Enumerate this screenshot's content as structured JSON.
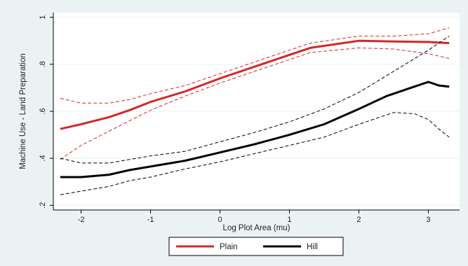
{
  "colors": {
    "background": "#eaf2f3",
    "plot_background": "#ffffff",
    "grid": "#eaf2f3",
    "plain": "#d62728",
    "hill": "#000000"
  },
  "chart_data": {
    "type": "line",
    "title": "",
    "xlabel": "Log Plot Area (mu)",
    "ylabel": "Machine Use - Land Preparation",
    "xlim": [
      -2.4,
      3.45
    ],
    "ylim": [
      0.18,
      1.02
    ],
    "xticks": [
      -2,
      -1,
      0,
      1,
      2,
      3
    ],
    "xtick_labels": [
      "-2",
      "-1",
      "0",
      "1",
      "2",
      "3"
    ],
    "yticks": [
      0.2,
      0.4,
      0.6,
      0.8,
      1.0
    ],
    "ytick_labels": [
      ".2",
      ".4",
      ".6",
      ".8",
      "1"
    ],
    "grid": "horizontal",
    "legend_position": "bottom",
    "series": [
      {
        "name": "Plain",
        "color": "#d62728",
        "style": "solid",
        "x": [
          -2.3,
          -2.0,
          -1.6,
          -1.3,
          -1.0,
          -0.5,
          0.0,
          0.5,
          1.0,
          1.3,
          2.0,
          2.5,
          3.0,
          3.3
        ],
        "y": [
          0.525,
          0.545,
          0.575,
          0.605,
          0.64,
          0.685,
          0.74,
          0.79,
          0.84,
          0.87,
          0.9,
          0.897,
          0.895,
          0.89
        ]
      },
      {
        "name": "Plain 95% CI upper",
        "color": "#d62728",
        "style": "dashed",
        "x": [
          -2.3,
          -2.0,
          -1.6,
          -1.3,
          -1.0,
          -0.5,
          0.0,
          0.5,
          1.0,
          1.3,
          2.0,
          2.5,
          3.0,
          3.3
        ],
        "y": [
          0.655,
          0.635,
          0.635,
          0.65,
          0.675,
          0.71,
          0.76,
          0.81,
          0.86,
          0.89,
          0.92,
          0.92,
          0.93,
          0.955
        ]
      },
      {
        "name": "Plain 95% CI lower",
        "color": "#d62728",
        "style": "dashed",
        "x": [
          -2.3,
          -2.0,
          -1.6,
          -1.3,
          -1.0,
          -0.5,
          0.0,
          0.5,
          1.0,
          1.3,
          2.0,
          2.5,
          3.0,
          3.3
        ],
        "y": [
          0.395,
          0.455,
          0.515,
          0.56,
          0.605,
          0.665,
          0.72,
          0.77,
          0.82,
          0.85,
          0.87,
          0.865,
          0.845,
          0.825
        ]
      },
      {
        "name": "Hill",
        "color": "#000000",
        "style": "solid",
        "x": [
          -2.3,
          -2.0,
          -1.6,
          -1.3,
          -1.0,
          -0.5,
          0.0,
          0.5,
          1.0,
          1.5,
          2.0,
          2.4,
          2.7,
          3.0,
          3.15,
          3.3
        ],
        "y": [
          0.32,
          0.32,
          0.33,
          0.35,
          0.365,
          0.39,
          0.425,
          0.46,
          0.5,
          0.545,
          0.61,
          0.665,
          0.695,
          0.725,
          0.71,
          0.705
        ]
      },
      {
        "name": "Hill 95% CI upper",
        "color": "#000000",
        "style": "dashed",
        "x": [
          -2.3,
          -2.0,
          -1.6,
          -1.3,
          -1.0,
          -0.5,
          0.0,
          0.5,
          1.0,
          1.5,
          2.0,
          2.5,
          3.0,
          3.3
        ],
        "y": [
          0.4,
          0.38,
          0.38,
          0.395,
          0.41,
          0.43,
          0.47,
          0.51,
          0.555,
          0.61,
          0.68,
          0.77,
          0.86,
          0.92
        ]
      },
      {
        "name": "Hill 95% CI lower",
        "color": "#000000",
        "style": "dashed",
        "x": [
          -2.3,
          -2.0,
          -1.6,
          -1.3,
          -1.0,
          -0.5,
          0.0,
          0.5,
          1.0,
          1.5,
          2.0,
          2.5,
          2.8,
          3.0,
          3.15,
          3.3
        ],
        "y": [
          0.245,
          0.26,
          0.28,
          0.305,
          0.32,
          0.355,
          0.385,
          0.42,
          0.455,
          0.49,
          0.545,
          0.595,
          0.59,
          0.565,
          0.525,
          0.49
        ]
      }
    ],
    "legend": [
      {
        "label": "Plain",
        "color": "#d62728"
      },
      {
        "label": "Hill",
        "color": "#000000"
      }
    ]
  }
}
